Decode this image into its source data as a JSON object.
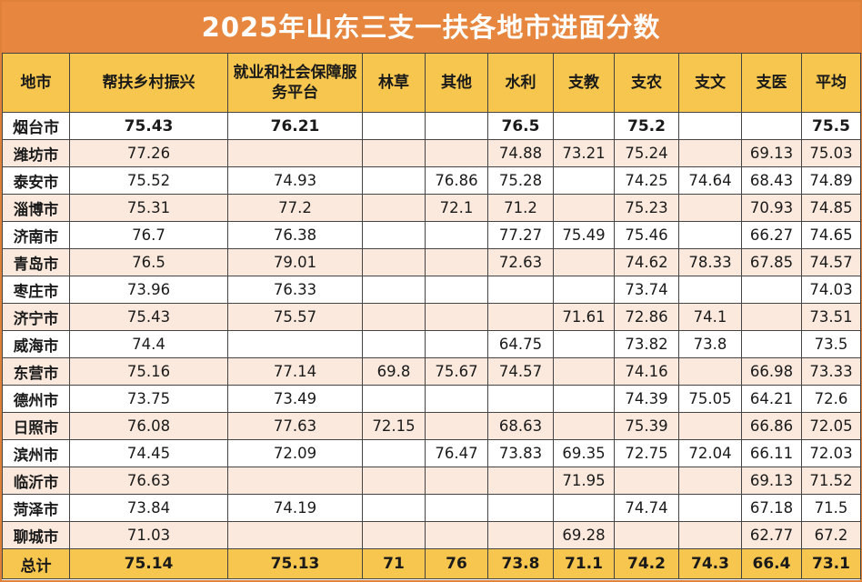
{
  "title": "2025年山东三支一扶各地市进面分数",
  "headers": [
    "地市",
    "帮扶乡村振兴",
    "就业和社会保障服务平台",
    "林草",
    "其他",
    "水利",
    "支教",
    "支农",
    "支文",
    "支医",
    "平均"
  ],
  "chart_data": {
    "type": "table",
    "title": "2025年山东三支一扶各地市进面分数",
    "columns": [
      "地市",
      "帮扶乡村振兴",
      "就业和社会保障服务平台",
      "林草",
      "其他",
      "水利",
      "支教",
      "支农",
      "支文",
      "支医",
      "平均"
    ],
    "rows": [
      [
        "烟台市",
        "75.43",
        "76.21",
        "",
        "",
        "76.5",
        "",
        "75.2",
        "",
        "",
        "75.5"
      ],
      [
        "潍坊市",
        "77.26",
        "",
        "",
        "",
        "74.88",
        "73.21",
        "75.24",
        "",
        "69.13",
        "75.03"
      ],
      [
        "泰安市",
        "75.52",
        "74.93",
        "",
        "76.86",
        "75.28",
        "",
        "74.25",
        "74.64",
        "68.43",
        "74.89"
      ],
      [
        "淄博市",
        "75.31",
        "77.2",
        "",
        "72.1",
        "71.2",
        "",
        "75.23",
        "",
        "70.93",
        "74.85"
      ],
      [
        "济南市",
        "76.7",
        "76.38",
        "",
        "",
        "77.27",
        "75.49",
        "75.46",
        "",
        "66.27",
        "74.65"
      ],
      [
        "青岛市",
        "76.5",
        "79.01",
        "",
        "",
        "72.63",
        "",
        "74.62",
        "78.33",
        "67.85",
        "74.57"
      ],
      [
        "枣庄市",
        "73.96",
        "76.33",
        "",
        "",
        "",
        "",
        "73.74",
        "",
        "",
        "74.03"
      ],
      [
        "济宁市",
        "75.43",
        "75.57",
        "",
        "",
        "",
        "71.61",
        "72.86",
        "74.1",
        "",
        "73.51"
      ],
      [
        "威海市",
        "74.4",
        "",
        "",
        "",
        "64.75",
        "",
        "73.82",
        "73.8",
        "",
        "73.5"
      ],
      [
        "东营市",
        "75.16",
        "77.14",
        "69.8",
        "75.67",
        "74.57",
        "",
        "74.16",
        "",
        "66.98",
        "73.33"
      ],
      [
        "德州市",
        "73.75",
        "73.49",
        "",
        "",
        "",
        "",
        "74.39",
        "75.05",
        "64.21",
        "72.6"
      ],
      [
        "日照市",
        "76.08",
        "77.63",
        "72.15",
        "",
        "68.63",
        "",
        "75.39",
        "",
        "66.86",
        "72.05"
      ],
      [
        "滨州市",
        "74.45",
        "72.09",
        "",
        "76.47",
        "73.83",
        "69.35",
        "72.75",
        "72.04",
        "66.11",
        "72.03"
      ],
      [
        "临沂市",
        "76.63",
        "",
        "",
        "",
        "",
        "71.95",
        "",
        "",
        "69.13",
        "71.52"
      ],
      [
        "菏泽市",
        "73.84",
        "74.19",
        "",
        "",
        "",
        "",
        "74.74",
        "",
        "67.18",
        "71.5"
      ],
      [
        "聊城市",
        "71.03",
        "",
        "",
        "",
        "",
        "69.28",
        "",
        "",
        "62.77",
        "67.2"
      ]
    ],
    "total_row": [
      "总计",
      "75.14",
      "75.13",
      "71",
      "76",
      "73.8",
      "71.1",
      "74.2",
      "74.3",
      "66.4",
      "73.1"
    ]
  },
  "colors": {
    "title_bg": "#e7873f",
    "header_bg": "#f6c64e",
    "alt_row_bg": "#fbe9dd",
    "border": "#e0813a"
  }
}
